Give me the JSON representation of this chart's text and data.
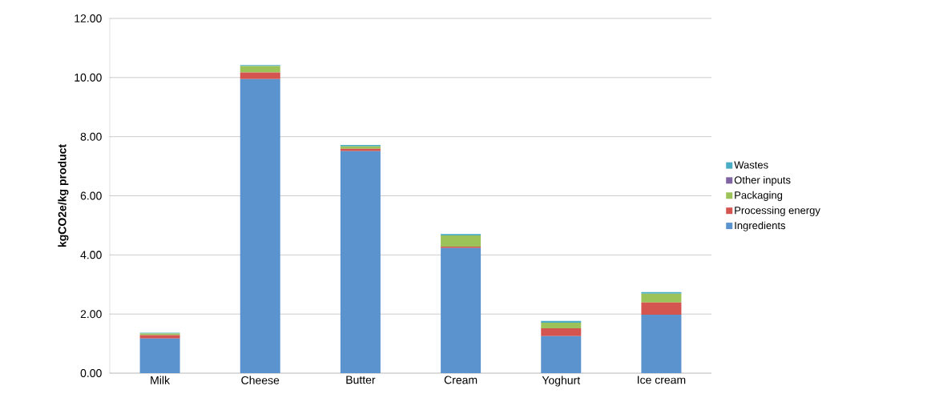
{
  "chart_data": {
    "type": "bar",
    "stacked": true,
    "ylabel": "kgCO2e/kg product",
    "categories": [
      "Milk",
      "Cheese",
      "Butter",
      "Cream",
      "Yoghurt",
      "Ice cream"
    ],
    "series": [
      {
        "name": "Ingredients",
        "color": "#5b93cf",
        "values": [
          1.17,
          9.95,
          7.51,
          4.23,
          1.25,
          1.98
        ]
      },
      {
        "name": "Processing energy",
        "color": "#d45550",
        "values": [
          0.12,
          0.22,
          0.08,
          0.05,
          0.27,
          0.41
        ]
      },
      {
        "name": "Packaging",
        "color": "#9cc35a",
        "values": [
          0.05,
          0.22,
          0.08,
          0.38,
          0.19,
          0.3
        ]
      },
      {
        "name": "Other inputs",
        "color": "#8064a2",
        "values": [
          null,
          null,
          null,
          null,
          null,
          null
        ]
      },
      {
        "name": "Wastes",
        "color": "#4bacc6",
        "values": [
          0.03,
          0.03,
          0.05,
          0.05,
          0.06,
          0.05
        ]
      }
    ],
    "ylim": [
      0,
      12
    ],
    "yticks": [
      {
        "value": 0,
        "label": "0.00"
      },
      {
        "value": 2,
        "label": "2.00"
      },
      {
        "value": 4,
        "label": "4.00"
      },
      {
        "value": 6,
        "label": "6.00"
      },
      {
        "value": 8,
        "label": "8.00"
      },
      {
        "value": 10,
        "label": "10.00"
      },
      {
        "value": 12,
        "label": "12.00"
      }
    ],
    "grid": "y",
    "legend": "right"
  }
}
